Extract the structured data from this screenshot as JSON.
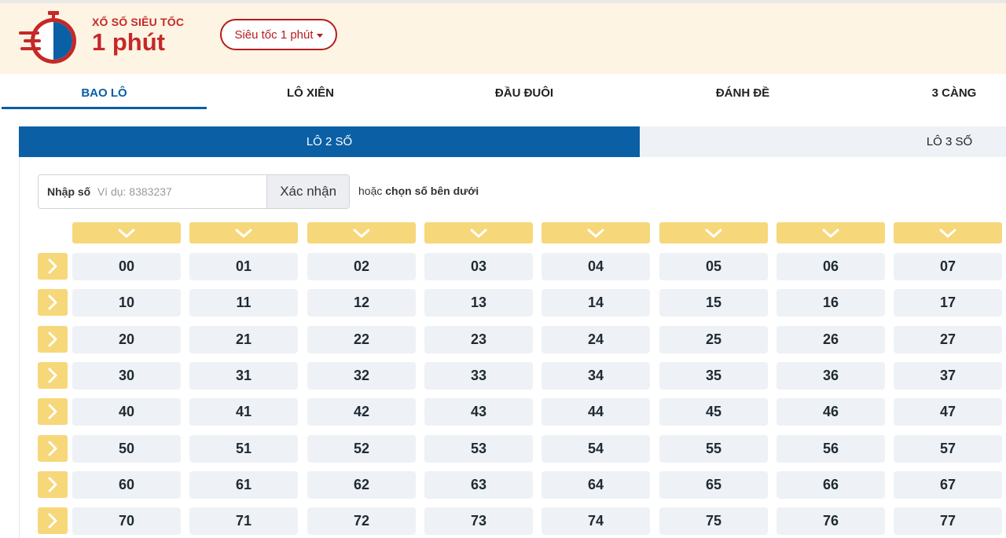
{
  "brand": {
    "small": "XỔ SỐ SIÊU TỐC",
    "big": "1 phút",
    "accent": "#c62828"
  },
  "game_select": {
    "selected": "Siêu tốc 1 phút"
  },
  "tabs": [
    "BAO LÔ",
    "LÔ XIÊN",
    "ĐẦU ĐUÔI",
    "ĐÁNH ĐỀ",
    "3 CÀNG"
  ],
  "active_tab": "BAO LÔ",
  "subtabs": [
    "LÔ 2 SỐ",
    "LÔ 3 SỐ"
  ],
  "active_subtab": "LÔ 2 SỐ",
  "input": {
    "label": "Nhập số",
    "placeholder": "Ví dụ: 8383237",
    "value": "",
    "confirm": "Xác nhận"
  },
  "helper": {
    "prefix": "hoặc",
    "strong": "chọn số bên dưới"
  },
  "icons": {
    "column_select": "chevron-down-icon",
    "row_select": "chevron-right-icon"
  },
  "grid": {
    "rows": [
      [
        "00",
        "01",
        "02",
        "03",
        "04",
        "05",
        "06",
        "07"
      ],
      [
        "10",
        "11",
        "12",
        "13",
        "14",
        "15",
        "16",
        "17"
      ],
      [
        "20",
        "21",
        "22",
        "23",
        "24",
        "25",
        "26",
        "27"
      ],
      [
        "30",
        "31",
        "32",
        "33",
        "34",
        "35",
        "36",
        "37"
      ],
      [
        "40",
        "41",
        "42",
        "43",
        "44",
        "45",
        "46",
        "47"
      ],
      [
        "50",
        "51",
        "52",
        "53",
        "54",
        "55",
        "56",
        "57"
      ],
      [
        "60",
        "61",
        "62",
        "63",
        "64",
        "65",
        "66",
        "67"
      ],
      [
        "70",
        "71",
        "72",
        "73",
        "74",
        "75",
        "76",
        "77"
      ]
    ]
  },
  "colors": {
    "primary": "#0b5fa5",
    "yellow": "#f6d77a",
    "header_bg": "#fdf4e3",
    "cell_bg": "#eef1f5"
  }
}
